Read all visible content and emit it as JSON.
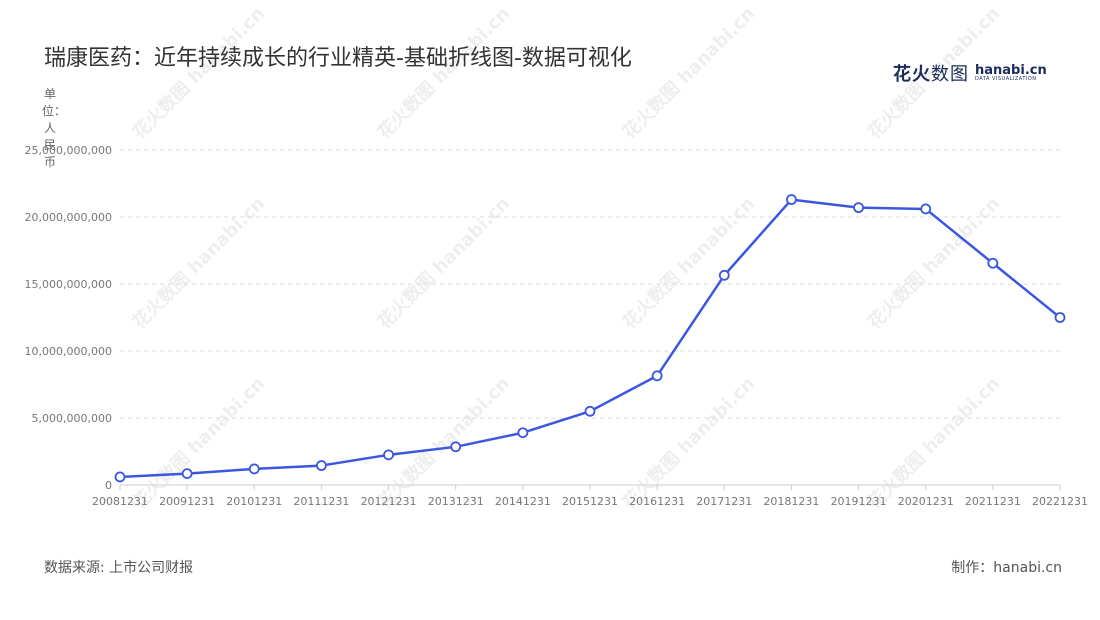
{
  "header": {
    "title": "瑞康医药：近年持续成长的行业精英-基础折线图-数据可视化",
    "brand_cn_bold": "花火",
    "brand_cn_thin": "数图",
    "brand_en": "hanabi.cn",
    "brand_tagline": "DATA VISUALIZATION"
  },
  "footer": {
    "source": "数据来源: 上市公司财报",
    "credit": "制作：hanabi.cn"
  },
  "colors": {
    "line": "#3b57e0",
    "grid": "#dddddd",
    "axis_text": "#777777"
  },
  "chart_data": {
    "type": "line",
    "title": "瑞康医药：近年持续成长的行业精英-基础折线图-数据可视化",
    "ylabel": "单位：人民币",
    "xlabel": "",
    "categories": [
      "20081231",
      "20091231",
      "20101231",
      "20111231",
      "20121231",
      "20131231",
      "20141231",
      "20151231",
      "20161231",
      "20171231",
      "20181231",
      "20191231",
      "20201231",
      "20211231",
      "20221231"
    ],
    "values": [
      600000000,
      850000000,
      1200000000,
      1450000000,
      2250000000,
      2850000000,
      3900000000,
      5500000000,
      8150000000,
      15650000000,
      21300000000,
      20700000000,
      20600000000,
      16550000000,
      12500000000
    ],
    "ylim": [
      0,
      25000000000
    ],
    "yticks": [
      0,
      5000000000,
      10000000000,
      15000000000,
      20000000000,
      25000000000
    ],
    "ytick_labels": [
      "0",
      "5,000,000,000",
      "10,000,000,000",
      "15,000,000,000",
      "20,000,000,000",
      "25,000,000,000"
    ],
    "grid": true,
    "legend": "none"
  }
}
